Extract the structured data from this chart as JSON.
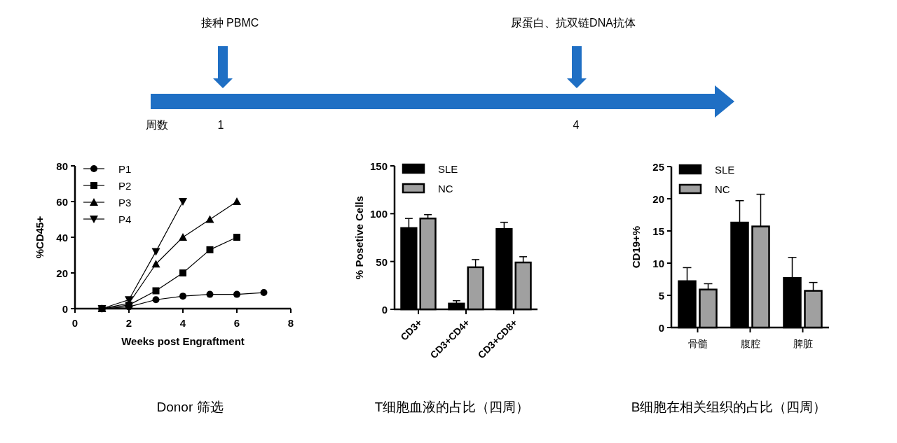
{
  "chart_data": [
    {
      "type": "other",
      "annotations": [
        "接种 PBMC",
        "尿蛋白、抗双链DNA抗体",
        "周数",
        "1",
        "4"
      ]
    },
    {
      "type": "line",
      "title": "Donor 筛选",
      "xlabel": "Weeks post Engraftment",
      "ylabel": "%CD45+",
      "xlim": [
        0,
        8
      ],
      "xticks": [
        0,
        2,
        4,
        6,
        8
      ],
      "ylim": [
        0,
        80
      ],
      "yticks": [
        0,
        20,
        40,
        60,
        80
      ],
      "grid": false,
      "legend": "top left",
      "series": [
        {
          "name": "P1",
          "color": "#000000",
          "marker": "circle",
          "x": [
            1,
            2,
            3,
            4,
            5,
            6,
            7
          ],
          "values": [
            0,
            1,
            5,
            7,
            8,
            8,
            9
          ]
        },
        {
          "name": "P2",
          "color": "#000000",
          "marker": "square",
          "x": [
            1,
            2,
            3,
            4,
            5,
            6
          ],
          "values": [
            0,
            2,
            10,
            20,
            33,
            40
          ]
        },
        {
          "name": "P3",
          "color": "#000000",
          "marker": "triangle",
          "x": [
            1,
            2,
            3,
            4,
            5,
            6
          ],
          "values": [
            0,
            3,
            25,
            40,
            50,
            60
          ]
        },
        {
          "name": "P4",
          "color": "#000000",
          "marker": "triangle-down",
          "x": [
            1,
            2,
            3,
            4
          ],
          "values": [
            0,
            5,
            32,
            60
          ]
        }
      ]
    },
    {
      "type": "bar",
      "title": "T细胞血液的占比（四周）",
      "ylabel": "% Posetive Cells",
      "categories": [
        "CD3+",
        "CD3+CD4+",
        "CD3+CD8+"
      ],
      "ylim": [
        0,
        150
      ],
      "yticks": [
        0,
        50,
        100,
        150
      ],
      "grid": false,
      "legend": "top left",
      "series": [
        {
          "name": "SLE",
          "color": "#000000",
          "values": [
            85,
            6,
            84
          ],
          "errors": [
            10,
            3,
            7
          ]
        },
        {
          "name": "NC",
          "color": "#a0a0a0",
          "values": [
            95,
            44,
            49
          ],
          "errors": [
            4,
            8,
            6
          ]
        }
      ]
    },
    {
      "type": "bar",
      "title": "B细胞在相关组织的占比（四周）",
      "ylabel": "CD19+%",
      "categories": [
        "骨髓",
        "腹腔",
        "脾脏"
      ],
      "ylim": [
        0,
        25
      ],
      "yticks": [
        0,
        5,
        10,
        15,
        20,
        25
      ],
      "grid": false,
      "legend": "top left",
      "series": [
        {
          "name": "SLE",
          "color": "#000000",
          "values": [
            7.2,
            16.3,
            7.7
          ],
          "errors": [
            2.1,
            3.4,
            3.2
          ]
        },
        {
          "name": "NC",
          "color": "#a0a0a0",
          "values": [
            5.9,
            15.7,
            5.7
          ],
          "errors": [
            0.9,
            5.0,
            1.3
          ]
        }
      ]
    }
  ]
}
